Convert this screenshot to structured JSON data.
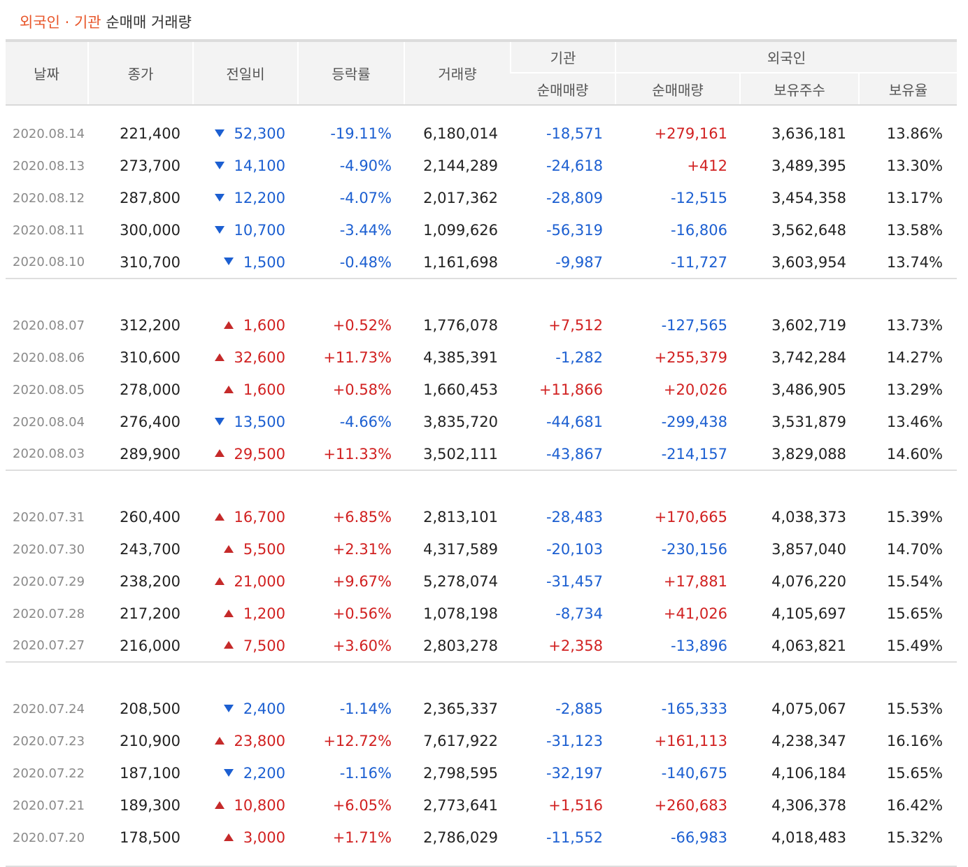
{
  "title": {
    "accent": "외국인 · 기관",
    "rest": "순매매 거래량"
  },
  "headers": {
    "date": "날짜",
    "close": "종가",
    "change": "전일비",
    "rate": "등락률",
    "volume": "거래량",
    "institution_group": "기관",
    "foreign_group": "외국인",
    "inst_net": "순매매량",
    "foreign_net": "순매매량",
    "foreign_holdings": "보유주수",
    "foreign_ratio": "보유율"
  },
  "colors": {
    "up": "#d12121",
    "down": "#1c5fd1",
    "accent": "#e8562a"
  },
  "groups": [
    {
      "rows": [
        {
          "date": "2020.08.14",
          "close": "221,400",
          "dir": "down",
          "change": "52,300",
          "rate": "-19.11%",
          "volume": "6,180,014",
          "inst": "-18,571",
          "foreign": "+279,161",
          "holdings": "3,636,181",
          "ratio": "13.86%"
        },
        {
          "date": "2020.08.13",
          "close": "273,700",
          "dir": "down",
          "change": "14,100",
          "rate": "-4.90%",
          "volume": "2,144,289",
          "inst": "-24,618",
          "foreign": "+412",
          "holdings": "3,489,395",
          "ratio": "13.30%"
        },
        {
          "date": "2020.08.12",
          "close": "287,800",
          "dir": "down",
          "change": "12,200",
          "rate": "-4.07%",
          "volume": "2,017,362",
          "inst": "-28,809",
          "foreign": "-12,515",
          "holdings": "3,454,358",
          "ratio": "13.17%"
        },
        {
          "date": "2020.08.11",
          "close": "300,000",
          "dir": "down",
          "change": "10,700",
          "rate": "-3.44%",
          "volume": "1,099,626",
          "inst": "-56,319",
          "foreign": "-16,806",
          "holdings": "3,562,648",
          "ratio": "13.58%"
        },
        {
          "date": "2020.08.10",
          "close": "310,700",
          "dir": "down",
          "change": "1,500",
          "rate": "-0.48%",
          "volume": "1,161,698",
          "inst": "-9,987",
          "foreign": "-11,727",
          "holdings": "3,603,954",
          "ratio": "13.74%"
        }
      ]
    },
    {
      "rows": [
        {
          "date": "2020.08.07",
          "close": "312,200",
          "dir": "up",
          "change": "1,600",
          "rate": "+0.52%",
          "volume": "1,776,078",
          "inst": "+7,512",
          "foreign": "-127,565",
          "holdings": "3,602,719",
          "ratio": "13.73%"
        },
        {
          "date": "2020.08.06",
          "close": "310,600",
          "dir": "up",
          "change": "32,600",
          "rate": "+11.73%",
          "volume": "4,385,391",
          "inst": "-1,282",
          "foreign": "+255,379",
          "holdings": "3,742,284",
          "ratio": "14.27%"
        },
        {
          "date": "2020.08.05",
          "close": "278,000",
          "dir": "up",
          "change": "1,600",
          "rate": "+0.58%",
          "volume": "1,660,453",
          "inst": "+11,866",
          "foreign": "+20,026",
          "holdings": "3,486,905",
          "ratio": "13.29%"
        },
        {
          "date": "2020.08.04",
          "close": "276,400",
          "dir": "down",
          "change": "13,500",
          "rate": "-4.66%",
          "volume": "3,835,720",
          "inst": "-44,681",
          "foreign": "-299,438",
          "holdings": "3,531,879",
          "ratio": "13.46%"
        },
        {
          "date": "2020.08.03",
          "close": "289,900",
          "dir": "up",
          "change": "29,500",
          "rate": "+11.33%",
          "volume": "3,502,111",
          "inst": "-43,867",
          "foreign": "-214,157",
          "holdings": "3,829,088",
          "ratio": "14.60%"
        }
      ]
    },
    {
      "rows": [
        {
          "date": "2020.07.31",
          "close": "260,400",
          "dir": "up",
          "change": "16,700",
          "rate": "+6.85%",
          "volume": "2,813,101",
          "inst": "-28,483",
          "foreign": "+170,665",
          "holdings": "4,038,373",
          "ratio": "15.39%"
        },
        {
          "date": "2020.07.30",
          "close": "243,700",
          "dir": "up",
          "change": "5,500",
          "rate": "+2.31%",
          "volume": "4,317,589",
          "inst": "-20,103",
          "foreign": "-230,156",
          "holdings": "3,857,040",
          "ratio": "14.70%"
        },
        {
          "date": "2020.07.29",
          "close": "238,200",
          "dir": "up",
          "change": "21,000",
          "rate": "+9.67%",
          "volume": "5,278,074",
          "inst": "-31,457",
          "foreign": "+17,881",
          "holdings": "4,076,220",
          "ratio": "15.54%"
        },
        {
          "date": "2020.07.28",
          "close": "217,200",
          "dir": "up",
          "change": "1,200",
          "rate": "+0.56%",
          "volume": "1,078,198",
          "inst": "-8,734",
          "foreign": "+41,026",
          "holdings": "4,105,697",
          "ratio": "15.65%"
        },
        {
          "date": "2020.07.27",
          "close": "216,000",
          "dir": "up",
          "change": "7,500",
          "rate": "+3.60%",
          "volume": "2,803,278",
          "inst": "+2,358",
          "foreign": "-13,896",
          "holdings": "4,063,821",
          "ratio": "15.49%"
        }
      ]
    },
    {
      "rows": [
        {
          "date": "2020.07.24",
          "close": "208,500",
          "dir": "down",
          "change": "2,400",
          "rate": "-1.14%",
          "volume": "2,365,337",
          "inst": "-2,885",
          "foreign": "-165,333",
          "holdings": "4,075,067",
          "ratio": "15.53%"
        },
        {
          "date": "2020.07.23",
          "close": "210,900",
          "dir": "up",
          "change": "23,800",
          "rate": "+12.72%",
          "volume": "7,617,922",
          "inst": "-31,123",
          "foreign": "+161,113",
          "holdings": "4,238,347",
          "ratio": "16.16%"
        },
        {
          "date": "2020.07.22",
          "close": "187,100",
          "dir": "down",
          "change": "2,200",
          "rate": "-1.16%",
          "volume": "2,798,595",
          "inst": "-32,197",
          "foreign": "-140,675",
          "holdings": "4,106,184",
          "ratio": "15.65%"
        },
        {
          "date": "2020.07.21",
          "close": "189,300",
          "dir": "up",
          "change": "10,800",
          "rate": "+6.05%",
          "volume": "2,773,641",
          "inst": "+1,516",
          "foreign": "+260,683",
          "holdings": "4,306,378",
          "ratio": "16.42%"
        },
        {
          "date": "2020.07.20",
          "close": "178,500",
          "dir": "up",
          "change": "3,000",
          "rate": "+1.71%",
          "volume": "2,786,029",
          "inst": "-11,552",
          "foreign": "-66,983",
          "holdings": "4,018,483",
          "ratio": "15.32%"
        }
      ]
    }
  ]
}
